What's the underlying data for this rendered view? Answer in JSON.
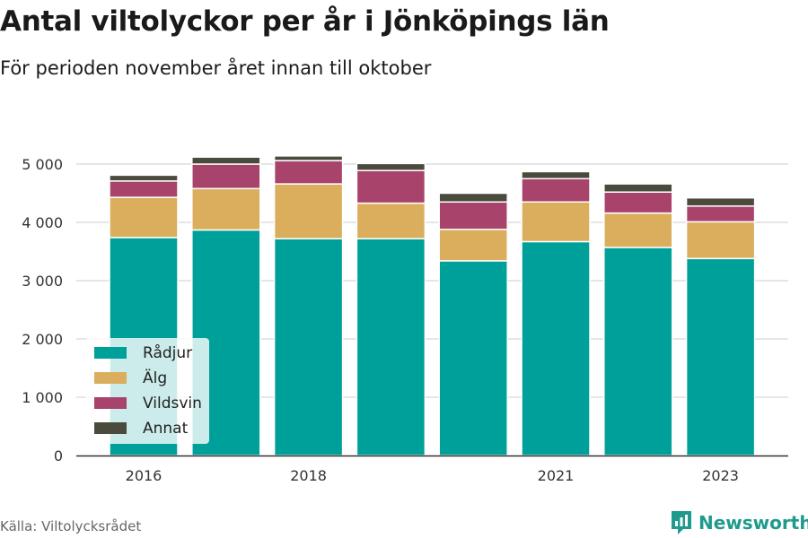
{
  "title": "Antal viltolyckor per år i Jönköpings län",
  "subtitle": "För perioden november året innan till oktober",
  "source": "Källa: Viltolycksrådet",
  "brand": {
    "name": "Newsworthy"
  },
  "colors": {
    "Rådjur": "#00a09a",
    "Älg": "#daae5c",
    "Vildsvin": "#a8436b",
    "Annat": "#4a4a3d",
    "grid": "#dddddd",
    "axis": "#333333",
    "brand": "#1f9a8d"
  },
  "chart_data": {
    "type": "bar",
    "stacked": true,
    "categories": [
      2016,
      2017,
      2018,
      2019,
      2020,
      2021,
      2022,
      2023
    ],
    "x_tick_labels": [
      "2016",
      "2018",
      "2021",
      "2023"
    ],
    "x_ticks": [
      2016,
      2018,
      2021,
      2023
    ],
    "series": [
      {
        "name": "Rådjur",
        "values": [
          3740,
          3870,
          3720,
          3720,
          3340,
          3670,
          3570,
          3380
        ]
      },
      {
        "name": "Älg",
        "values": [
          690,
          710,
          940,
          610,
          540,
          680,
          590,
          630
        ]
      },
      {
        "name": "Vildsvin",
        "values": [
          280,
          420,
          400,
          560,
          470,
          400,
          360,
          270
        ]
      },
      {
        "name": "Annat",
        "values": [
          100,
          120,
          80,
          120,
          150,
          120,
          140,
          140
        ]
      }
    ],
    "ylim": [
      0,
      5000
    ],
    "y_ticks": [
      0,
      1000,
      2000,
      3000,
      4000,
      5000
    ],
    "y_tick_labels": [
      "0",
      "1 000",
      "2 000",
      "3 000",
      "4 000",
      "5 000"
    ],
    "grid": true,
    "legend_position": "bottom-left"
  }
}
